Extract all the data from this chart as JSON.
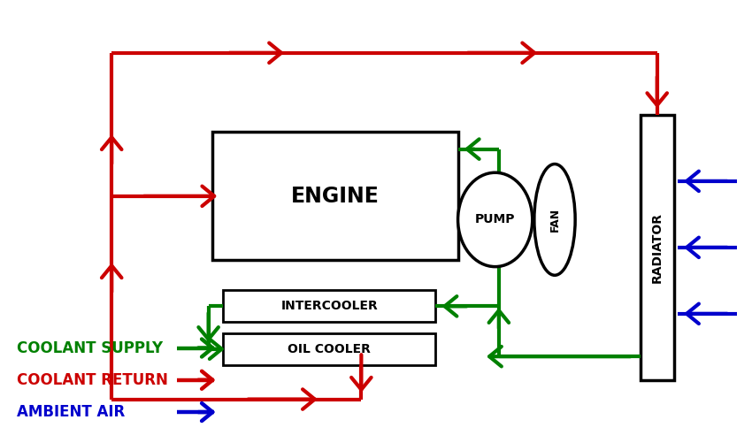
{
  "bg_color": "#ffffff",
  "green": "#008000",
  "red": "#cc0000",
  "blue": "#0000cc",
  "black": "#000000",
  "lw": 3.0,
  "engine": [
    0.28,
    0.4,
    0.33,
    0.3
  ],
  "intercooler": [
    0.295,
    0.255,
    0.285,
    0.075
  ],
  "oilcooler": [
    0.295,
    0.155,
    0.285,
    0.075
  ],
  "radiator": [
    0.855,
    0.12,
    0.045,
    0.62
  ],
  "pump": [
    0.66,
    0.495,
    0.1,
    0.22
  ],
  "fan": [
    0.74,
    0.495,
    0.055,
    0.26
  ],
  "legend": [
    {
      "label": "COOLANT SUPPLY",
      "color": "#008000",
      "open": false
    },
    {
      "label": "COOLANT RETURN",
      "color": "#cc0000",
      "open": false
    },
    {
      "label": "AMBIENT AIR",
      "color": "#0000cc",
      "open": true
    }
  ]
}
